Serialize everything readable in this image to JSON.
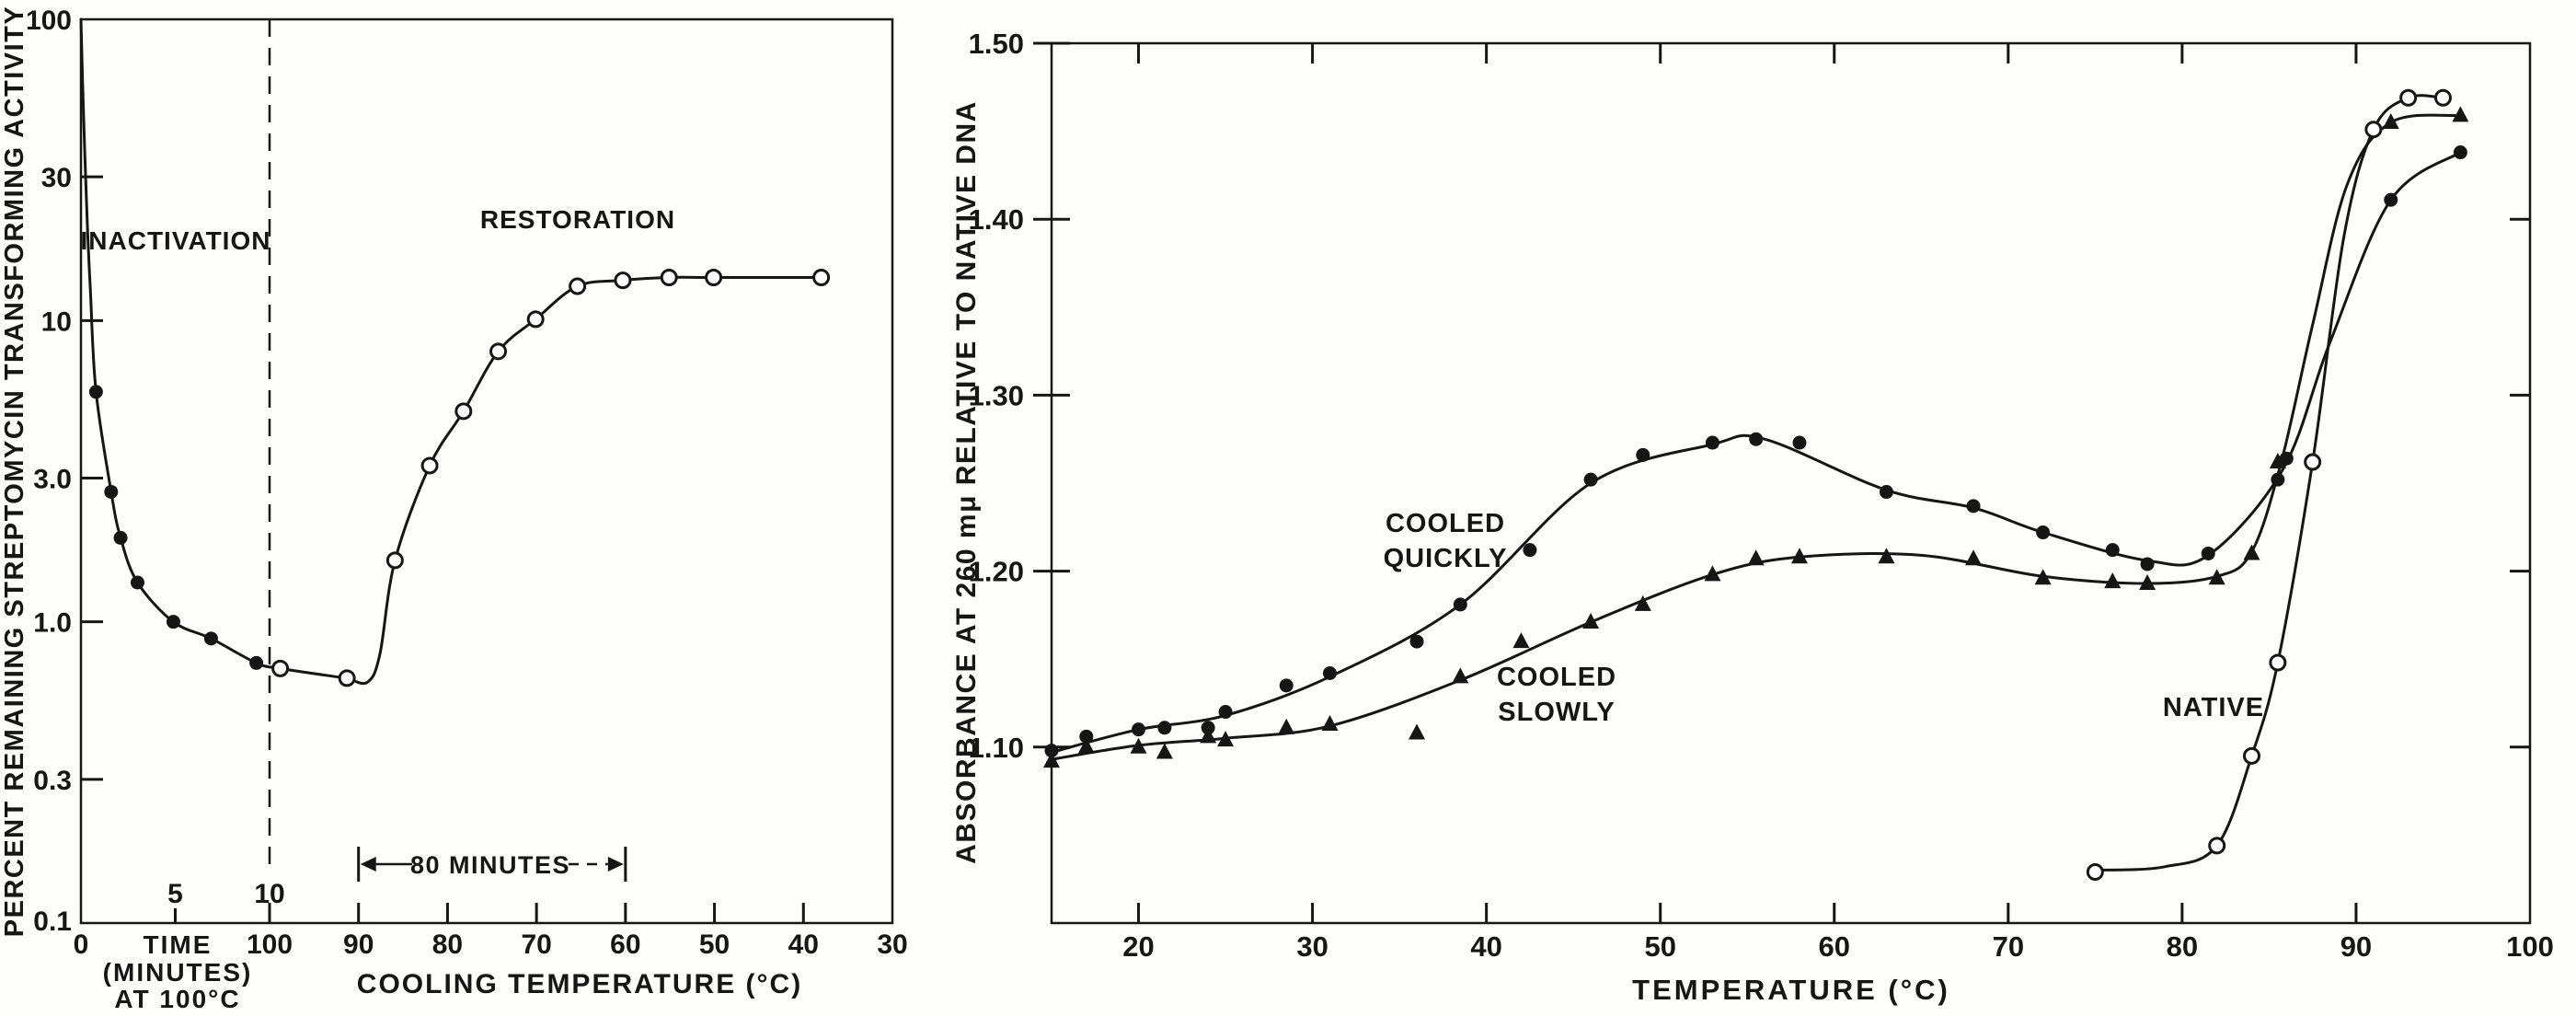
{
  "figure": {
    "background": "#fdfdfc",
    "ink": "#161616"
  },
  "chart_data": [
    {
      "id": "transforming-activity",
      "type": "line",
      "title": "",
      "y_axis": {
        "label": "PERCENT REMAINING STREPTOMYCIN TRANSFORMING ACTIVITY",
        "scale": "log",
        "range": [
          0.1,
          100
        ],
        "ticks": [
          {
            "label": "100",
            "v": 100
          },
          {
            "label": "30",
            "v": 30
          },
          {
            "label": "10",
            "v": 10
          },
          {
            "label": "3.0",
            "v": 3
          },
          {
            "label": "1.0",
            "v": 1
          },
          {
            "label": "0.3",
            "v": 0.3
          },
          {
            "label": "0.1",
            "v": 0.1
          }
        ]
      },
      "x_axis": {
        "segments": [
          {
            "id": "time",
            "title_lines": [
              "TIME",
              "(MINUTES)",
              "AT 100°C"
            ],
            "range": [
              0,
              10
            ],
            "ticks": [
              {
                "label": "0",
                "v": 0,
                "label_side": "below",
                "tick": false
              },
              {
                "label": "5",
                "v": 5,
                "label_side": "above",
                "tick": true
              },
              {
                "label": "10",
                "v": 10,
                "label_side": "above",
                "tick": true
              }
            ]
          },
          {
            "id": "cooling",
            "title": "COOLING TEMPERATURE (°C)",
            "range": [
              100,
              30
            ],
            "ticks": [
              {
                "label": "100",
                "v": 100
              },
              {
                "label": "90",
                "v": 90
              },
              {
                "label": "80",
                "v": 80
              },
              {
                "label": "70",
                "v": 70
              },
              {
                "label": "60",
                "v": 60
              },
              {
                "label": "50",
                "v": 50
              },
              {
                "label": "40",
                "v": 40
              },
              {
                "label": "30",
                "v": 30
              }
            ]
          }
        ],
        "divider": {
          "style": "dashed",
          "at_time": 10
        }
      },
      "region_labels": [
        {
          "id": "inactivation",
          "text": "INACTIVATION"
        },
        {
          "id": "restoration",
          "text": "RESTORATION"
        }
      ],
      "span_annotation": {
        "text": "80 MINUTES",
        "from_cooling": 90,
        "to_cooling": 60
      },
      "series": [
        {
          "name": "inactivation",
          "marker": "filled-circle",
          "segment": "time",
          "points": [
            [
              0.8,
              5.8
            ],
            [
              1.6,
              2.7
            ],
            [
              2.1,
              1.9
            ],
            [
              3.0,
              1.35
            ],
            [
              4.9,
              1.0
            ],
            [
              6.9,
              0.88
            ],
            [
              9.3,
              0.73
            ]
          ]
        },
        {
          "name": "restoration",
          "marker": "open-circle",
          "segment": "cooling",
          "points": [
            [
              98.8,
              0.7
            ],
            [
              91.3,
              0.65
            ],
            [
              85.9,
              1.6
            ],
            [
              82.0,
              3.3
            ],
            [
              78.2,
              5.0
            ],
            [
              74.3,
              7.9
            ],
            [
              70.1,
              10.1
            ],
            [
              65.4,
              13.0
            ],
            [
              60.3,
              13.6
            ],
            [
              55.1,
              13.9
            ],
            [
              50.1,
              13.9
            ],
            [
              38.0,
              13.9
            ]
          ]
        }
      ],
      "curve": {
        "time": [
          [
            0,
            100
          ],
          [
            0.12,
            52
          ],
          [
            0.3,
            24
          ],
          [
            0.5,
            12.5
          ],
          [
            0.8,
            5.8
          ],
          [
            1.6,
            2.7
          ],
          [
            2.1,
            1.9
          ],
          [
            3.0,
            1.35
          ],
          [
            4.9,
            1.0
          ],
          [
            6.9,
            0.88
          ],
          [
            9.3,
            0.73
          ]
        ],
        "cooling": [
          [
            98.8,
            0.7
          ],
          [
            93.0,
            0.66
          ],
          [
            91.3,
            0.65
          ],
          [
            89.0,
            0.63
          ],
          [
            87.6,
            0.78
          ],
          [
            85.9,
            1.6
          ],
          [
            82.0,
            3.3
          ],
          [
            78.2,
            5.0
          ],
          [
            74.3,
            7.9
          ],
          [
            70.1,
            10.1
          ],
          [
            65.4,
            13.0
          ],
          [
            60.3,
            13.6
          ],
          [
            55.1,
            13.9
          ],
          [
            50.1,
            13.9
          ],
          [
            38.0,
            13.9
          ]
        ]
      }
    },
    {
      "id": "absorbance",
      "type": "line",
      "title": "",
      "xlabel": "TEMPERATURE (°C)",
      "ylabel": "ABSORBANCE AT 260 mμ RELATIVE TO NATIVE DNA",
      "xlim": [
        15,
        100
      ],
      "ylim": [
        1.0,
        1.5
      ],
      "x_ticks": [
        {
          "label": "20",
          "v": 20
        },
        {
          "label": "30",
          "v": 30
        },
        {
          "label": "40",
          "v": 40
        },
        {
          "label": "50",
          "v": 50
        },
        {
          "label": "60",
          "v": 60
        },
        {
          "label": "70",
          "v": 70
        },
        {
          "label": "80",
          "v": 80
        },
        {
          "label": "90",
          "v": 90
        },
        {
          "label": "100",
          "v": 100
        }
      ],
      "y_ticks": [
        {
          "label": "1.50",
          "v": 1.5
        },
        {
          "label": "1.40",
          "v": 1.4
        },
        {
          "label": "1.30",
          "v": 1.3
        },
        {
          "label": "1.20",
          "v": 1.2
        },
        {
          "label": "1.10",
          "v": 1.1
        }
      ],
      "series": [
        {
          "name": "cooled-quickly",
          "label_lines": [
            "COOLED",
            "QUICKLY"
          ],
          "marker": "filled-circle",
          "points": [
            [
              15,
              1.098
            ],
            [
              17,
              1.106
            ],
            [
              20,
              1.11
            ],
            [
              21.5,
              1.111
            ],
            [
              24,
              1.111
            ],
            [
              25,
              1.12
            ],
            [
              28.5,
              1.135
            ],
            [
              31,
              1.142
            ],
            [
              36,
              1.16
            ],
            [
              38.5,
              1.181
            ],
            [
              42.5,
              1.212
            ],
            [
              46,
              1.252
            ],
            [
              49,
              1.266
            ],
            [
              53,
              1.273
            ],
            [
              55.5,
              1.275
            ],
            [
              58,
              1.273
            ],
            [
              63,
              1.245
            ],
            [
              68,
              1.237
            ],
            [
              72,
              1.222
            ],
            [
              76,
              1.212
            ],
            [
              78,
              1.204
            ],
            [
              81.5,
              1.21
            ],
            [
              85.5,
              1.252
            ],
            [
              86,
              1.264
            ],
            [
              92,
              1.411
            ],
            [
              96,
              1.438
            ]
          ],
          "curve": [
            [
              15,
              1.097
            ],
            [
              20,
              1.11
            ],
            [
              25,
              1.118
            ],
            [
              31,
              1.14
            ],
            [
              38.5,
              1.181
            ],
            [
              46,
              1.25
            ],
            [
              53,
              1.272
            ],
            [
              56,
              1.275
            ],
            [
              63,
              1.246
            ],
            [
              68,
              1.236
            ],
            [
              72,
              1.222
            ],
            [
              78,
              1.206
            ],
            [
              81.5,
              1.209
            ],
            [
              85.8,
              1.258
            ],
            [
              88.5,
              1.33
            ],
            [
              92,
              1.411
            ],
            [
              96,
              1.438
            ]
          ]
        },
        {
          "name": "cooled-slowly",
          "label_lines": [
            "COOLED",
            "SLOWLY"
          ],
          "marker": "filled-triangle",
          "points": [
            [
              15,
              1.092
            ],
            [
              17,
              1.1
            ],
            [
              20,
              1.1
            ],
            [
              21.5,
              1.097
            ],
            [
              24,
              1.106
            ],
            [
              25,
              1.104
            ],
            [
              28.5,
              1.111
            ],
            [
              31,
              1.113
            ],
            [
              36,
              1.108
            ],
            [
              38.5,
              1.14
            ],
            [
              42,
              1.16
            ],
            [
              46,
              1.171
            ],
            [
              49,
              1.181
            ],
            [
              53,
              1.198
            ],
            [
              55.5,
              1.207
            ],
            [
              58,
              1.208
            ],
            [
              63,
              1.208
            ],
            [
              68,
              1.207
            ],
            [
              72,
              1.196
            ],
            [
              76,
              1.194
            ],
            [
              78,
              1.193
            ],
            [
              82,
              1.196
            ],
            [
              84,
              1.21
            ],
            [
              85.5,
              1.262
            ],
            [
              92,
              1.455
            ],
            [
              96,
              1.459
            ]
          ],
          "curve": [
            [
              15,
              1.093
            ],
            [
              20,
              1.101
            ],
            [
              25,
              1.105
            ],
            [
              31,
              1.112
            ],
            [
              38.5,
              1.138
            ],
            [
              46,
              1.171
            ],
            [
              53,
              1.198
            ],
            [
              58,
              1.208
            ],
            [
              65,
              1.209
            ],
            [
              72,
              1.197
            ],
            [
              78,
              1.193
            ],
            [
              82,
              1.197
            ],
            [
              84,
              1.211
            ],
            [
              85.7,
              1.262
            ],
            [
              87.5,
              1.34
            ],
            [
              89.5,
              1.42
            ],
            [
              92,
              1.455
            ],
            [
              96,
              1.459
            ]
          ]
        },
        {
          "name": "native",
          "label_lines": [
            "NATIVE"
          ],
          "marker": "open-circle",
          "points": [
            [
              75,
              1.029
            ],
            [
              82,
              1.044
            ],
            [
              84,
              1.095
            ],
            [
              85.5,
              1.148
            ],
            [
              87.5,
              1.262
            ],
            [
              91,
              1.451
            ],
            [
              93,
              1.469
            ],
            [
              95,
              1.469
            ]
          ],
          "curve": [
            [
              75,
              1.03
            ],
            [
              79,
              1.032
            ],
            [
              82,
              1.044
            ],
            [
              84,
              1.095
            ],
            [
              85.5,
              1.148
            ],
            [
              87.5,
              1.262
            ],
            [
              89.3,
              1.39
            ],
            [
              91,
              1.451
            ],
            [
              93,
              1.469
            ],
            [
              95,
              1.469
            ]
          ]
        }
      ]
    }
  ]
}
